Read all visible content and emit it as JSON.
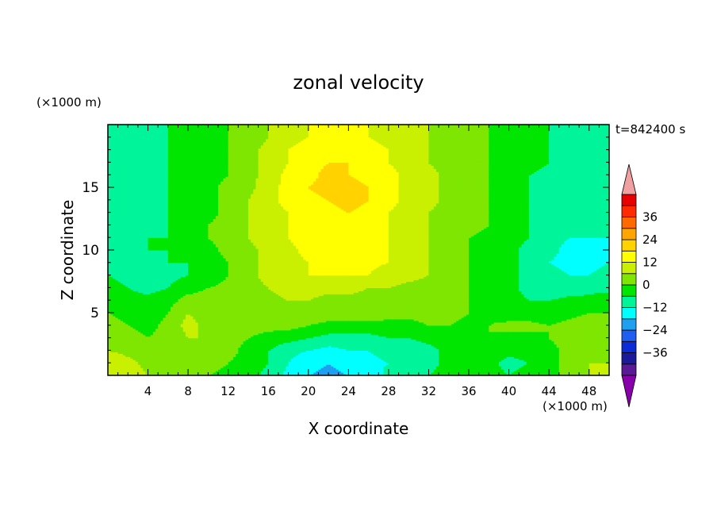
{
  "chart_data": {
    "type": "heatmap",
    "title": "zonal velocity",
    "xlabel": "X coordinate",
    "ylabel": "Z coordinate",
    "x_unit": "(×1000 m)",
    "y_unit": "(×1000 m)",
    "time_label": "t=842400 s",
    "xlim": [
      0,
      50
    ],
    "ylim": [
      0,
      20
    ],
    "x_ticks": [
      4,
      8,
      12,
      16,
      20,
      24,
      28,
      32,
      36,
      40,
      44,
      48
    ],
    "y_ticks": [
      5,
      10,
      15
    ],
    "colorbar": {
      "levels": [
        -42,
        -36,
        -30,
        -24,
        -18,
        -12,
        -6,
        0,
        6,
        12,
        18,
        24,
        30,
        36,
        42
      ],
      "tick_labels": [
        -36,
        -24,
        -12,
        0,
        12,
        24,
        36
      ],
      "colors": [
        "#5a1a96",
        "#1a1a9a",
        "#0a2bd6",
        "#1e5ef0",
        "#1f9ff0",
        "#00ffff",
        "#00f59a",
        "#00e600",
        "#7ee600",
        "#c8f000",
        "#ffff00",
        "#ffd200",
        "#ffa500",
        "#ff6a00",
        "#ff2a00",
        "#e60000"
      ],
      "under_color": "#8800aa",
      "over_color": "#f0a0a0"
    },
    "x": [
      0,
      2,
      4,
      6,
      8,
      10,
      12,
      14,
      16,
      18,
      20,
      22,
      24,
      26,
      28,
      30,
      32,
      34,
      36,
      38,
      40,
      42,
      44,
      46,
      48,
      50
    ],
    "z": [
      0,
      1,
      2,
      3,
      4,
      5,
      6,
      7,
      8,
      9,
      10,
      11,
      12,
      13,
      14,
      15,
      16,
      17,
      18,
      19,
      20
    ],
    "values": [
      [
        10,
        10,
        6,
        4,
        2,
        0,
        -2,
        -4,
        -8,
        -14,
        -18,
        -20,
        -18,
        -16,
        -10,
        -8,
        -6,
        -4,
        -2,
        -4,
        -6,
        -4,
        -2,
        2,
        6,
        6
      ],
      [
        12,
        8,
        4,
        2,
        4,
        2,
        0,
        -2,
        -6,
        -12,
        -16,
        -18,
        -16,
        -14,
        -12,
        -10,
        -8,
        -4,
        -2,
        -4,
        -8,
        -6,
        -2,
        2,
        6,
        6
      ],
      [
        6,
        4,
        2,
        2,
        4,
        6,
        2,
        -2,
        -6,
        -10,
        -12,
        -14,
        -12,
        -12,
        -10,
        -10,
        -8,
        -4,
        -2,
        -2,
        -4,
        -4,
        -2,
        2,
        4,
        4
      ],
      [
        4,
        2,
        0,
        2,
        6,
        6,
        2,
        0,
        -2,
        -4,
        -6,
        -8,
        -8,
        -8,
        -6,
        -6,
        -4,
        -2,
        -2,
        0,
        -2,
        -2,
        0,
        2,
        4,
        4
      ],
      [
        2,
        0,
        -2,
        2,
        8,
        4,
        2,
        2,
        2,
        2,
        0,
        -2,
        -2,
        -2,
        -2,
        -2,
        0,
        0,
        -2,
        0,
        2,
        2,
        0,
        2,
        4,
        2
      ],
      [
        0,
        -2,
        -4,
        0,
        6,
        4,
        2,
        4,
        4,
        4,
        4,
        4,
        4,
        4,
        2,
        2,
        2,
        2,
        0,
        -2,
        -4,
        -4,
        -4,
        -2,
        0,
        0
      ],
      [
        -2,
        -4,
        -4,
        -2,
        2,
        2,
        2,
        4,
        4,
        6,
        6,
        4,
        4,
        4,
        4,
        2,
        2,
        2,
        0,
        -2,
        -4,
        -6,
        -6,
        -4,
        -4,
        -2
      ],
      [
        -4,
        -6,
        -8,
        -6,
        -2,
        0,
        2,
        4,
        6,
        8,
        8,
        8,
        8,
        6,
        6,
        4,
        4,
        2,
        0,
        -2,
        -4,
        -8,
        -10,
        -10,
        -8,
        -8
      ],
      [
        -6,
        -8,
        -10,
        -8,
        -6,
        -4,
        0,
        4,
        8,
        10,
        12,
        12,
        12,
        12,
        10,
        8,
        6,
        2,
        0,
        -2,
        -4,
        -8,
        -10,
        -12,
        -12,
        -10
      ],
      [
        -6,
        -8,
        -8,
        -6,
        -6,
        -4,
        0,
        4,
        8,
        10,
        12,
        14,
        14,
        13,
        12,
        10,
        6,
        2,
        0,
        -2,
        -4,
        -8,
        -12,
        -14,
        -14,
        -12
      ],
      [
        -8,
        -8,
        -6,
        -6,
        -4,
        -2,
        2,
        4,
        8,
        10,
        14,
        16,
        16,
        14,
        12,
        10,
        6,
        4,
        0,
        -2,
        -4,
        -8,
        -10,
        -14,
        -14,
        -14
      ],
      [
        -8,
        -8,
        -6,
        -6,
        -4,
        0,
        2,
        6,
        10,
        12,
        16,
        18,
        16,
        14,
        12,
        10,
        6,
        4,
        0,
        -2,
        -4,
        -6,
        -10,
        -12,
        -12,
        -12
      ],
      [
        -8,
        -8,
        -8,
        -6,
        -4,
        0,
        2,
        6,
        10,
        12,
        14,
        16,
        16,
        14,
        12,
        10,
        6,
        4,
        2,
        0,
        -4,
        -6,
        -8,
        -10,
        -12,
        -10
      ],
      [
        -8,
        -10,
        -8,
        -6,
        -4,
        -2,
        2,
        6,
        10,
        12,
        14,
        16,
        18,
        16,
        12,
        10,
        6,
        4,
        2,
        0,
        -4,
        -6,
        -8,
        -10,
        -10,
        -8
      ],
      [
        -10,
        -10,
        -8,
        -6,
        -4,
        -2,
        2,
        6,
        10,
        14,
        16,
        18,
        20,
        18,
        14,
        10,
        8,
        4,
        2,
        0,
        -4,
        -6,
        -8,
        -10,
        -10,
        -10
      ],
      [
        -10,
        -10,
        -8,
        -6,
        -4,
        -2,
        2,
        4,
        10,
        14,
        18,
        20,
        20,
        18,
        14,
        10,
        8,
        4,
        2,
        0,
        -4,
        -6,
        -8,
        -10,
        -12,
        -12
      ],
      [
        -10,
        -10,
        -8,
        -6,
        -4,
        -2,
        0,
        4,
        8,
        14,
        16,
        20,
        18,
        16,
        14,
        10,
        8,
        4,
        2,
        0,
        -4,
        -6,
        -8,
        -10,
        -10,
        -10
      ],
      [
        -8,
        -10,
        -10,
        -6,
        -4,
        -2,
        0,
        4,
        8,
        12,
        16,
        18,
        18,
        16,
        12,
        10,
        6,
        4,
        2,
        0,
        -2,
        -4,
        -6,
        -8,
        -8,
        -8
      ],
      [
        -8,
        -10,
        -10,
        -6,
        -4,
        -2,
        0,
        4,
        8,
        12,
        14,
        16,
        16,
        14,
        12,
        10,
        6,
        4,
        2,
        0,
        -2,
        -4,
        -6,
        -8,
        -8,
        -8
      ],
      [
        -10,
        -12,
        -10,
        -6,
        -4,
        -2,
        0,
        2,
        6,
        10,
        12,
        14,
        14,
        12,
        10,
        8,
        6,
        4,
        2,
        0,
        -2,
        -4,
        -6,
        -8,
        -8,
        -8
      ],
      [
        -10,
        -12,
        -10,
        -6,
        -4,
        -2,
        0,
        2,
        6,
        10,
        12,
        14,
        14,
        12,
        10,
        8,
        6,
        4,
        2,
        0,
        -2,
        -4,
        -6,
        -8,
        -8,
        -8
      ]
    ]
  }
}
